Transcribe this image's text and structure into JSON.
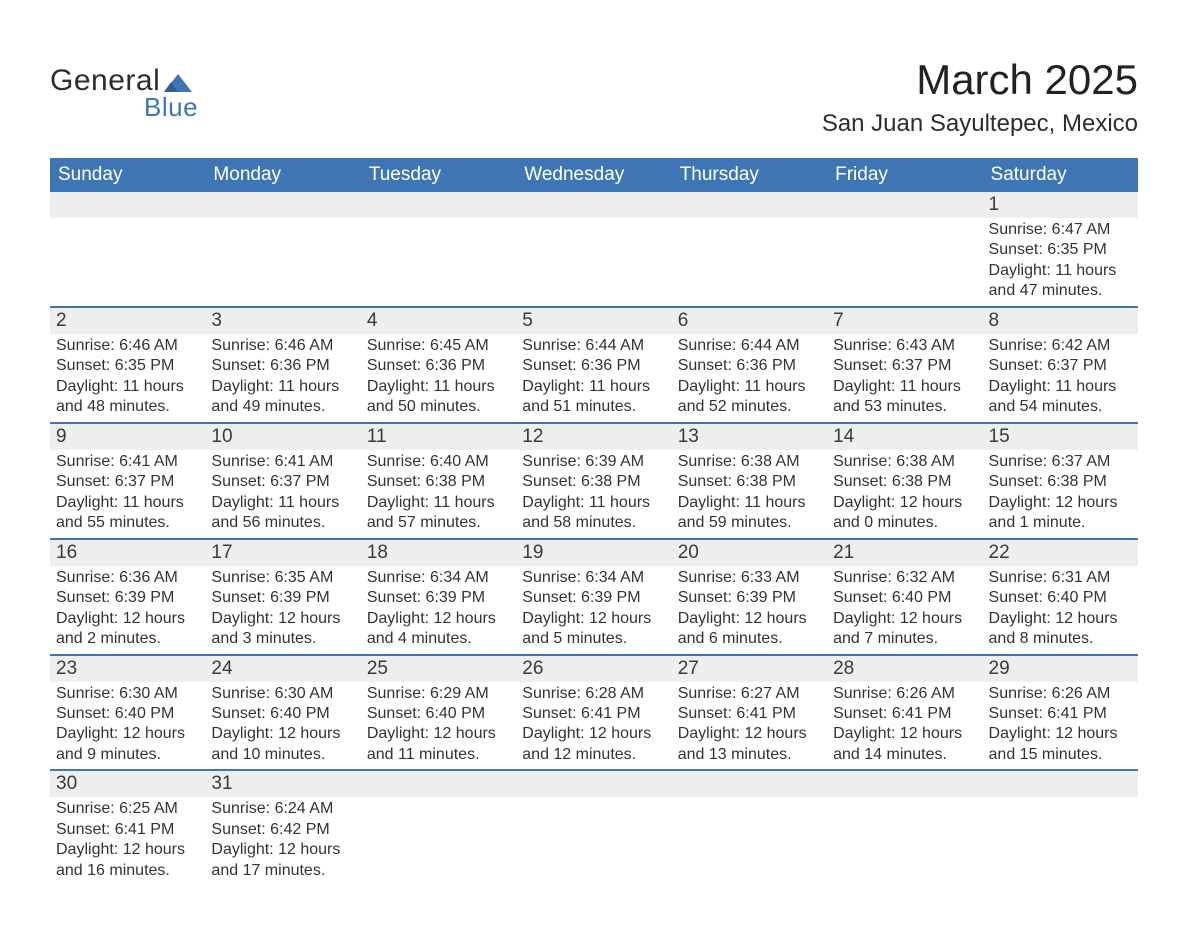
{
  "logo": {
    "word1": "General",
    "word2": "Blue",
    "tri_color": "#3e76b5"
  },
  "title": "March 2025",
  "location": "San Juan Sayultepec, Mexico",
  "weekday_labels": [
    "Sunday",
    "Monday",
    "Tuesday",
    "Wednesday",
    "Thursday",
    "Friday",
    "Saturday"
  ],
  "colors": {
    "header_blue": "#3e76b5",
    "day_bg": "#eeeeee",
    "text": "#333333"
  },
  "weeks": [
    [
      null,
      null,
      null,
      null,
      null,
      null,
      {
        "n": "1",
        "sunrise": "Sunrise: 6:47 AM",
        "sunset": "Sunset: 6:35 PM",
        "daylight": "Daylight: 11 hours and 47 minutes."
      }
    ],
    [
      {
        "n": "2",
        "sunrise": "Sunrise: 6:46 AM",
        "sunset": "Sunset: 6:35 PM",
        "daylight": "Daylight: 11 hours and 48 minutes."
      },
      {
        "n": "3",
        "sunrise": "Sunrise: 6:46 AM",
        "sunset": "Sunset: 6:36 PM",
        "daylight": "Daylight: 11 hours and 49 minutes."
      },
      {
        "n": "4",
        "sunrise": "Sunrise: 6:45 AM",
        "sunset": "Sunset: 6:36 PM",
        "daylight": "Daylight: 11 hours and 50 minutes."
      },
      {
        "n": "5",
        "sunrise": "Sunrise: 6:44 AM",
        "sunset": "Sunset: 6:36 PM",
        "daylight": "Daylight: 11 hours and 51 minutes."
      },
      {
        "n": "6",
        "sunrise": "Sunrise: 6:44 AM",
        "sunset": "Sunset: 6:36 PM",
        "daylight": "Daylight: 11 hours and 52 minutes."
      },
      {
        "n": "7",
        "sunrise": "Sunrise: 6:43 AM",
        "sunset": "Sunset: 6:37 PM",
        "daylight": "Daylight: 11 hours and 53 minutes."
      },
      {
        "n": "8",
        "sunrise": "Sunrise: 6:42 AM",
        "sunset": "Sunset: 6:37 PM",
        "daylight": "Daylight: 11 hours and 54 minutes."
      }
    ],
    [
      {
        "n": "9",
        "sunrise": "Sunrise: 6:41 AM",
        "sunset": "Sunset: 6:37 PM",
        "daylight": "Daylight: 11 hours and 55 minutes."
      },
      {
        "n": "10",
        "sunrise": "Sunrise: 6:41 AM",
        "sunset": "Sunset: 6:37 PM",
        "daylight": "Daylight: 11 hours and 56 minutes."
      },
      {
        "n": "11",
        "sunrise": "Sunrise: 6:40 AM",
        "sunset": "Sunset: 6:38 PM",
        "daylight": "Daylight: 11 hours and 57 minutes."
      },
      {
        "n": "12",
        "sunrise": "Sunrise: 6:39 AM",
        "sunset": "Sunset: 6:38 PM",
        "daylight": "Daylight: 11 hours and 58 minutes."
      },
      {
        "n": "13",
        "sunrise": "Sunrise: 6:38 AM",
        "sunset": "Sunset: 6:38 PM",
        "daylight": "Daylight: 11 hours and 59 minutes."
      },
      {
        "n": "14",
        "sunrise": "Sunrise: 6:38 AM",
        "sunset": "Sunset: 6:38 PM",
        "daylight": "Daylight: 12 hours and 0 minutes."
      },
      {
        "n": "15",
        "sunrise": "Sunrise: 6:37 AM",
        "sunset": "Sunset: 6:38 PM",
        "daylight": "Daylight: 12 hours and 1 minute."
      }
    ],
    [
      {
        "n": "16",
        "sunrise": "Sunrise: 6:36 AM",
        "sunset": "Sunset: 6:39 PM",
        "daylight": "Daylight: 12 hours and 2 minutes."
      },
      {
        "n": "17",
        "sunrise": "Sunrise: 6:35 AM",
        "sunset": "Sunset: 6:39 PM",
        "daylight": "Daylight: 12 hours and 3 minutes."
      },
      {
        "n": "18",
        "sunrise": "Sunrise: 6:34 AM",
        "sunset": "Sunset: 6:39 PM",
        "daylight": "Daylight: 12 hours and 4 minutes."
      },
      {
        "n": "19",
        "sunrise": "Sunrise: 6:34 AM",
        "sunset": "Sunset: 6:39 PM",
        "daylight": "Daylight: 12 hours and 5 minutes."
      },
      {
        "n": "20",
        "sunrise": "Sunrise: 6:33 AM",
        "sunset": "Sunset: 6:39 PM",
        "daylight": "Daylight: 12 hours and 6 minutes."
      },
      {
        "n": "21",
        "sunrise": "Sunrise: 6:32 AM",
        "sunset": "Sunset: 6:40 PM",
        "daylight": "Daylight: 12 hours and 7 minutes."
      },
      {
        "n": "22",
        "sunrise": "Sunrise: 6:31 AM",
        "sunset": "Sunset: 6:40 PM",
        "daylight": "Daylight: 12 hours and 8 minutes."
      }
    ],
    [
      {
        "n": "23",
        "sunrise": "Sunrise: 6:30 AM",
        "sunset": "Sunset: 6:40 PM",
        "daylight": "Daylight: 12 hours and 9 minutes."
      },
      {
        "n": "24",
        "sunrise": "Sunrise: 6:30 AM",
        "sunset": "Sunset: 6:40 PM",
        "daylight": "Daylight: 12 hours and 10 minutes."
      },
      {
        "n": "25",
        "sunrise": "Sunrise: 6:29 AM",
        "sunset": "Sunset: 6:40 PM",
        "daylight": "Daylight: 12 hours and 11 minutes."
      },
      {
        "n": "26",
        "sunrise": "Sunrise: 6:28 AM",
        "sunset": "Sunset: 6:41 PM",
        "daylight": "Daylight: 12 hours and 12 minutes."
      },
      {
        "n": "27",
        "sunrise": "Sunrise: 6:27 AM",
        "sunset": "Sunset: 6:41 PM",
        "daylight": "Daylight: 12 hours and 13 minutes."
      },
      {
        "n": "28",
        "sunrise": "Sunrise: 6:26 AM",
        "sunset": "Sunset: 6:41 PM",
        "daylight": "Daylight: 12 hours and 14 minutes."
      },
      {
        "n": "29",
        "sunrise": "Sunrise: 6:26 AM",
        "sunset": "Sunset: 6:41 PM",
        "daylight": "Daylight: 12 hours and 15 minutes."
      }
    ],
    [
      {
        "n": "30",
        "sunrise": "Sunrise: 6:25 AM",
        "sunset": "Sunset: 6:41 PM",
        "daylight": "Daylight: 12 hours and 16 minutes."
      },
      {
        "n": "31",
        "sunrise": "Sunrise: 6:24 AM",
        "sunset": "Sunset: 6:42 PM",
        "daylight": "Daylight: 12 hours and 17 minutes."
      },
      null,
      null,
      null,
      null,
      null
    ]
  ]
}
